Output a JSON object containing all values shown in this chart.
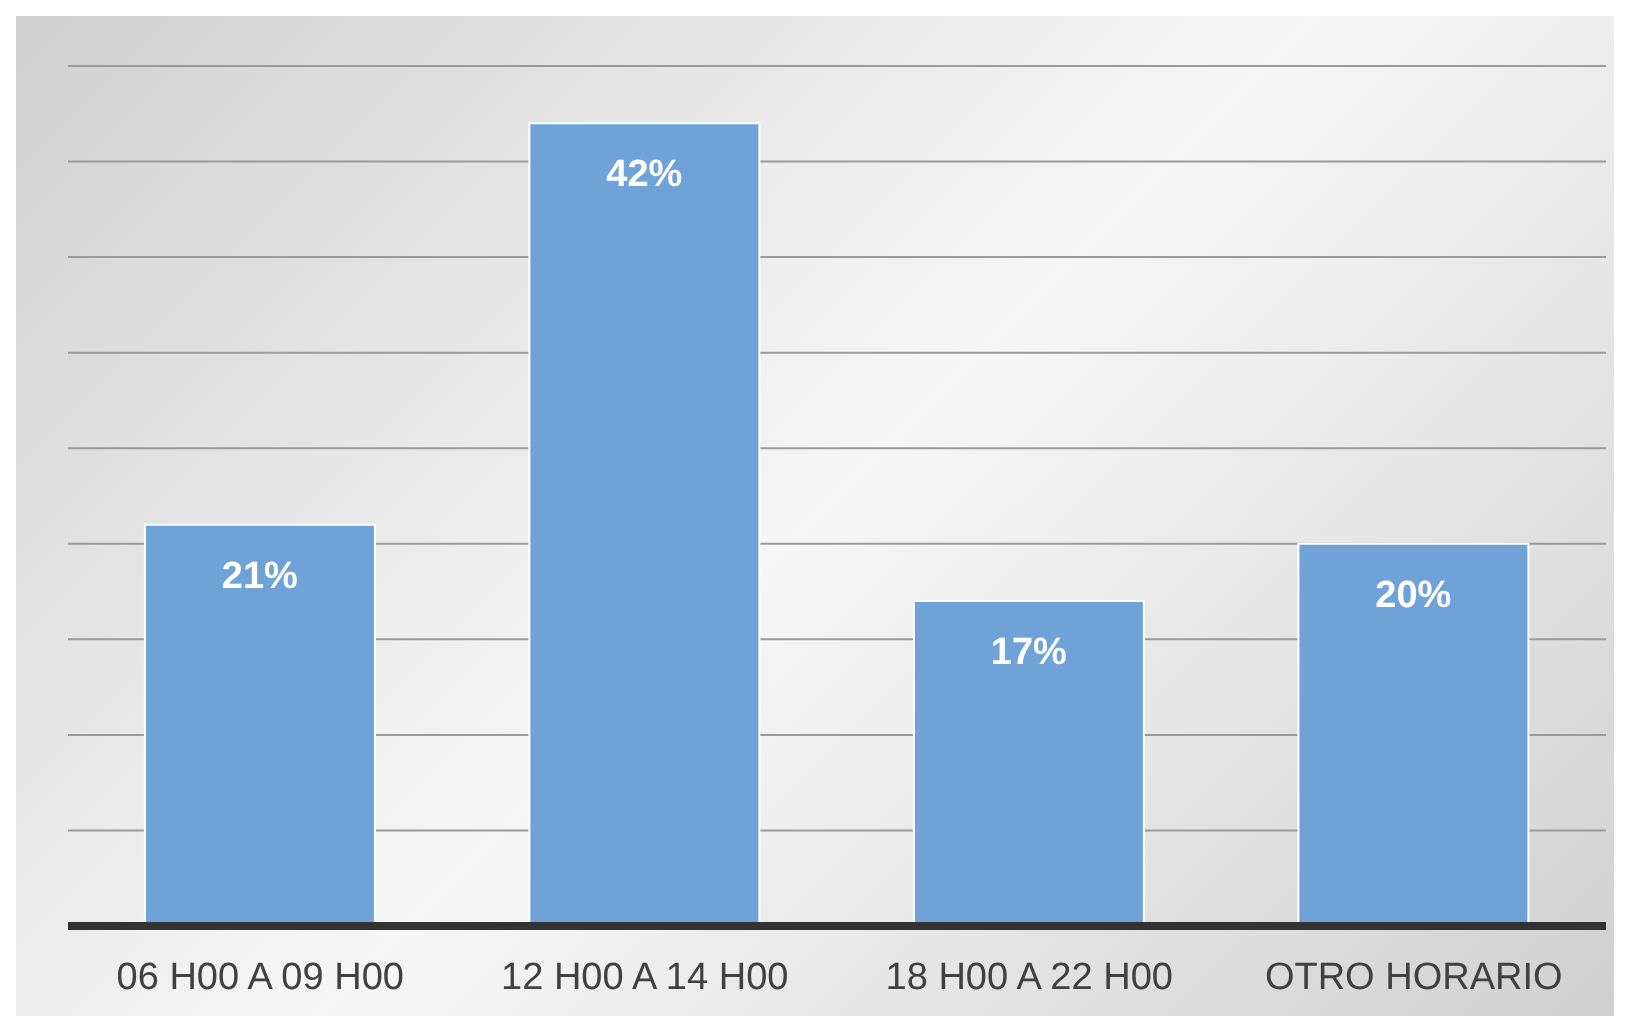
{
  "chart_data": {
    "type": "bar",
    "categories": [
      "06 H00 A 09 H00",
      "12 H00 A 14 H00",
      "18 H00 A 22 H00",
      "OTRO HORARIO"
    ],
    "values": [
      21,
      42,
      17,
      20
    ],
    "value_labels": [
      "21%",
      "42%",
      "17%",
      "20%"
    ],
    "color": "#6fa3d8",
    "ylim": [
      0,
      45
    ],
    "yticks": [
      {
        "value": 0,
        "label": null
      },
      {
        "value": 5,
        "label": null
      },
      {
        "value": 10,
        "label": null
      },
      {
        "value": 15,
        "label": null
      },
      {
        "value": 20,
        "label": null
      },
      {
        "value": 25,
        "label": null
      },
      {
        "value": 30,
        "label": null
      },
      {
        "value": 35,
        "label": null
      },
      {
        "value": 40,
        "label": null
      },
      {
        "value": 45,
        "label": null
      }
    ],
    "grid": "y",
    "tick_labels": "x"
  }
}
